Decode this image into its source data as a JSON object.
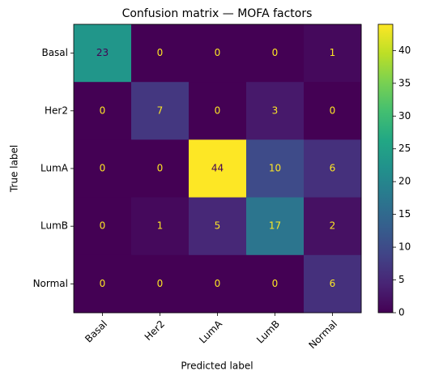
{
  "chart_data": {
    "type": "heatmap",
    "title": "Confusion matrix — MOFA factors",
    "xlabel": "Predicted label",
    "ylabel": "True label",
    "x_categories": [
      "Basal",
      "Her2",
      "LumA",
      "LumB",
      "Normal"
    ],
    "y_categories": [
      "Basal",
      "Her2",
      "LumA",
      "LumB",
      "Normal"
    ],
    "values": [
      [
        23,
        0,
        0,
        0,
        1
      ],
      [
        0,
        7,
        0,
        3,
        0
      ],
      [
        0,
        0,
        44,
        10,
        6
      ],
      [
        0,
        1,
        5,
        17,
        2
      ],
      [
        0,
        0,
        0,
        0,
        6
      ]
    ],
    "colormap": "viridis",
    "clim": [
      0,
      44
    ],
    "cticks": [
      0,
      5,
      10,
      15,
      20,
      25,
      30,
      35,
      40
    ]
  }
}
